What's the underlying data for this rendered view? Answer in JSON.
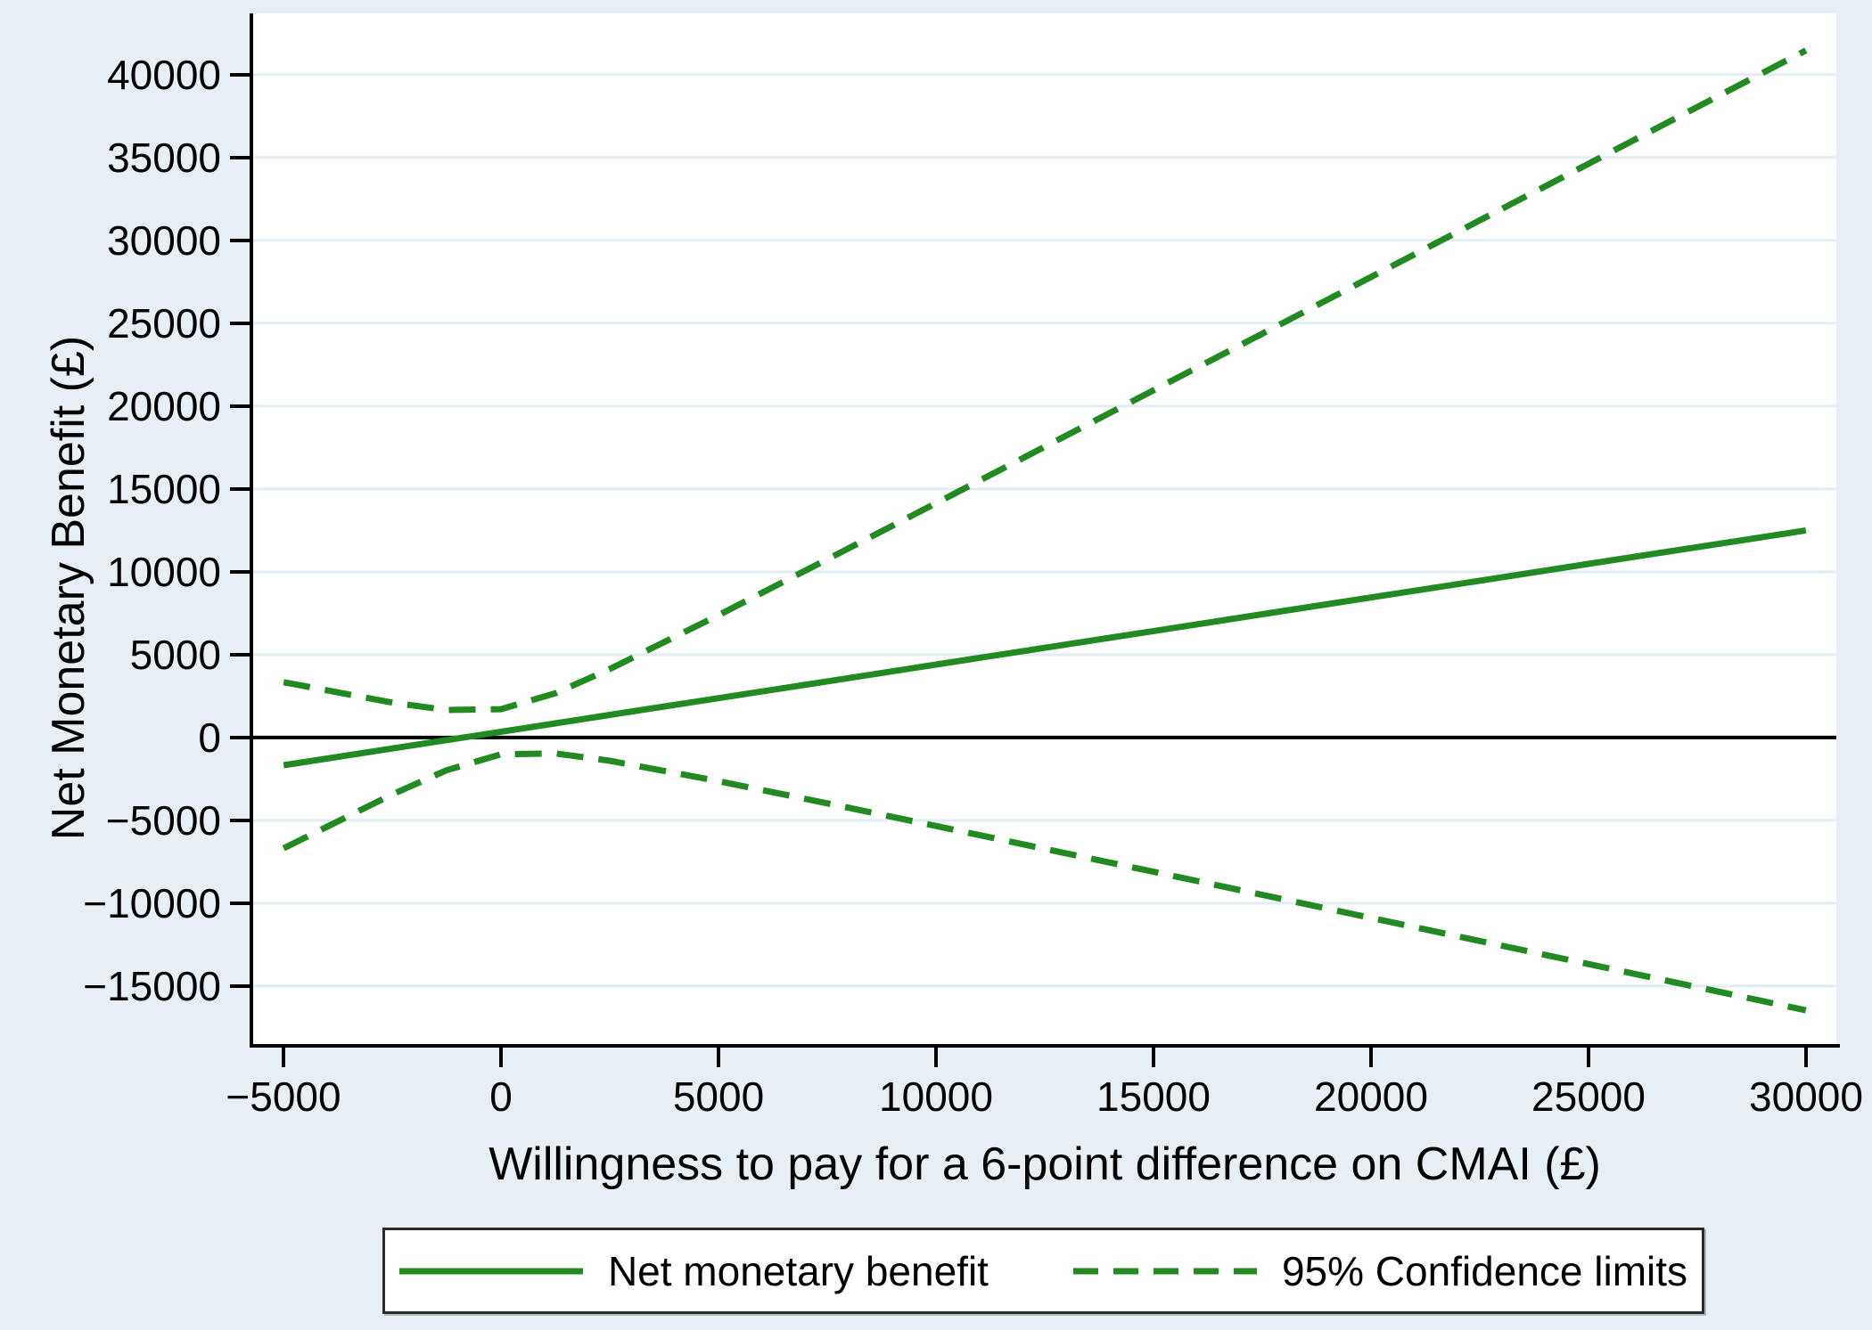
{
  "figure": {
    "background_color": "#e8eff4",
    "plot_background": "#ffffff",
    "grid_color": "#e2edf4",
    "axis_color": "#000000",
    "series_color": "#218a21"
  },
  "chart_data": {
    "type": "line",
    "title": "",
    "xlabel": "Willingness to pay for a 6-point difference on CMAI (£)",
    "ylabel": "Net Monetary Benefit (£)",
    "xlim": [
      -5700,
      30700
    ],
    "ylim": [
      -18500,
      43700
    ],
    "grid": "horizontal-only",
    "zero_reference_line": 0,
    "legend_position": "bottom",
    "x_ticks": {
      "values": [
        -5000,
        0,
        5000,
        10000,
        15000,
        20000,
        25000,
        30000
      ],
      "labels": [
        "−5000",
        "0",
        "5000",
        "10000",
        "15000",
        "20000",
        "25000",
        "30000"
      ]
    },
    "y_ticks": {
      "values": [
        40000,
        35000,
        30000,
        25000,
        20000,
        15000,
        10000,
        5000,
        0,
        -5000,
        -10000,
        -15000
      ],
      "labels": [
        "40000",
        "35000",
        "30000",
        "25000",
        "20000",
        "15000",
        "10000",
        "5000",
        "0",
        "−5000",
        "−10000",
        "−15000"
      ]
    },
    "x": [
      -5000,
      -2500,
      -1250,
      0,
      1250,
      2500,
      5000,
      7500,
      10000,
      12500,
      15000,
      17500,
      20000,
      22500,
      25000,
      27500,
      30000
    ],
    "series": [
      {
        "name": "Net monetary benefit",
        "style": "solid",
        "values": [
          -1675,
          -663,
          -156,
          350,
          856,
          1363,
          2375,
          3388,
          4400,
          5413,
          6425,
          7438,
          8450,
          9463,
          10475,
          11488,
          12500
        ]
      },
      {
        "name": "95% Confidence limits (upper)",
        "style": "dashed",
        "values": [
          3335,
          2105,
          1661,
          1710,
          2673,
          4131,
          7385,
          10748,
          14139,
          17544,
          20954,
          24369,
          27785,
          31204,
          34622,
          38043,
          41463
        ]
      },
      {
        "name": "95% Confidence limits (lower)",
        "style": "dashed",
        "values": [
          -6685,
          -3431,
          -1973,
          -1010,
          -961,
          -1405,
          -2635,
          -3973,
          -5339,
          -6719,
          -8104,
          -9494,
          -10885,
          -12279,
          -13672,
          -15067,
          -16463
        ]
      }
    ],
    "legend": {
      "items": [
        {
          "label": "Net monetary benefit",
          "style": "solid"
        },
        {
          "label": "95% Confidence limits",
          "style": "dashed"
        }
      ]
    }
  }
}
